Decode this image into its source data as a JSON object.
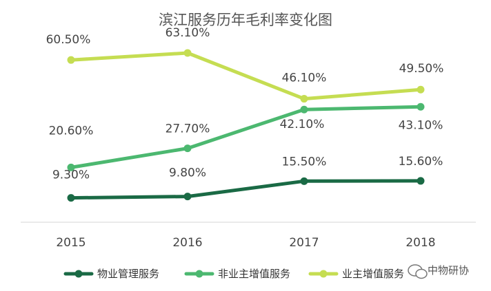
{
  "chart_data": {
    "type": "line",
    "title": "滨江服务历年毛利率变化图",
    "categories": [
      "2015",
      "2016",
      "2017",
      "2018"
    ],
    "xlabel": "",
    "ylabel": "",
    "ylim": [
      0,
      70
    ],
    "grid": false,
    "legend_position": "bottom",
    "series": [
      {
        "name": "物业管理服务",
        "values": [
          9.3,
          9.8,
          15.5,
          15.6
        ],
        "labels": [
          "9.30%",
          "9.80%",
          "15.50%",
          "15.60%"
        ],
        "color": "#1a6a45"
      },
      {
        "name": "非业主增值服务",
        "values": [
          20.6,
          27.7,
          42.1,
          43.1
        ],
        "labels": [
          "20.60%",
          "27.70%",
          "42.10%",
          "43.10%"
        ],
        "color": "#4cb870"
      },
      {
        "name": "业主增值服务",
        "values": [
          60.5,
          63.1,
          46.1,
          49.5
        ],
        "labels": [
          "60.50%",
          "63.10%",
          "46.10%",
          "49.50%"
        ],
        "color": "#c5dd52"
      }
    ]
  },
  "watermark": {
    "text": "中物研协",
    "icon": "wechat-icon"
  }
}
